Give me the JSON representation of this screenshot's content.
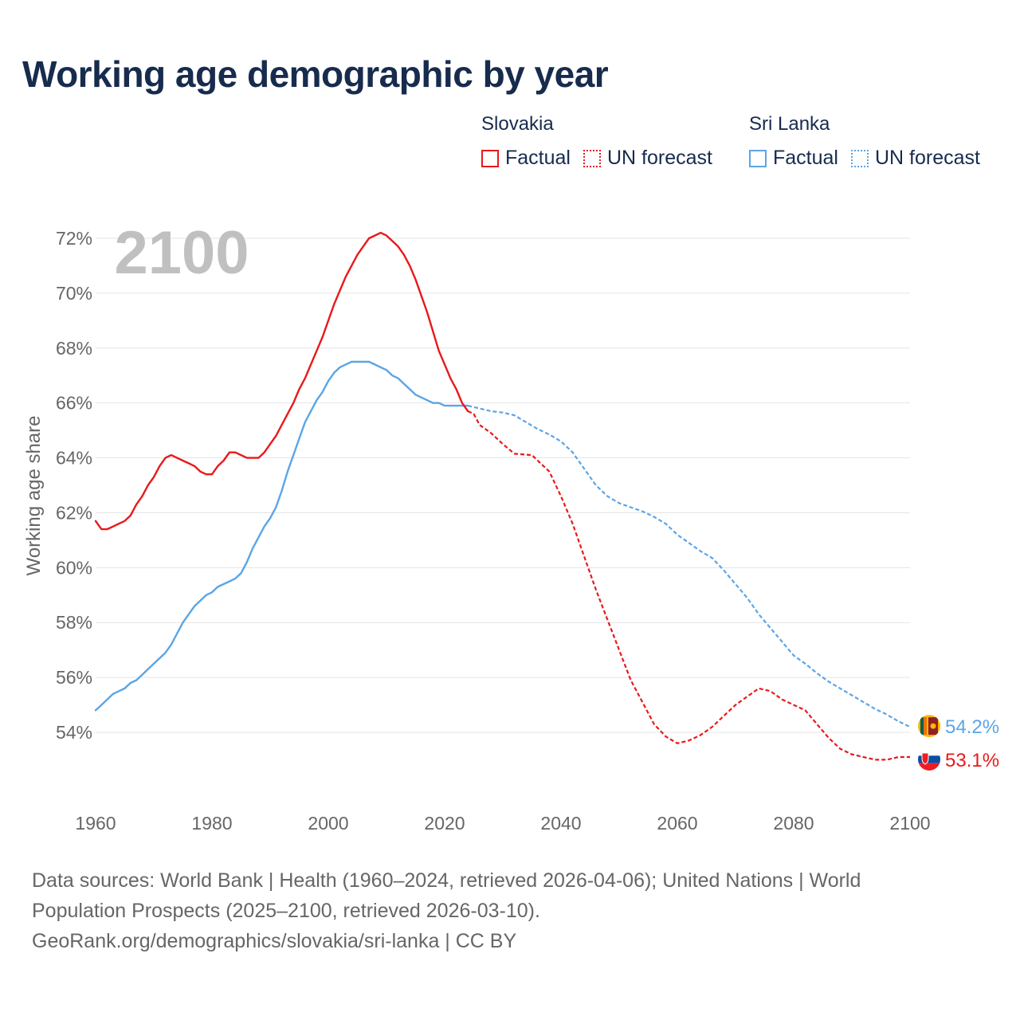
{
  "title": "Working age demographic by year",
  "legend": {
    "groups": [
      {
        "name": "Slovakia",
        "color": "#e8191b",
        "items": [
          "Factual",
          "UN forecast"
        ]
      },
      {
        "name": "Sri Lanka",
        "color": "#5aa5e6",
        "items": [
          "Factual",
          "UN forecast"
        ]
      }
    ]
  },
  "year_label": "2100",
  "footer": {
    "line1": "Data sources: World Bank | Health (1960–2024, retrieved 2026-04-06); United Nations | World",
    "line2": "Population Prospects (2025–2100, retrieved 2026-03-10).",
    "line3": "GeoRank.org/demographics/slovakia/sri-lanka | CC BY"
  },
  "chart_data": {
    "type": "line",
    "title": "Working age demographic by year",
    "xlabel": "",
    "ylabel": "Working age share",
    "xlim": [
      1960,
      2100
    ],
    "ylim": [
      52.5,
      72.5
    ],
    "x_ticks": [
      "1960",
      "1980",
      "2000",
      "2020",
      "2040",
      "2060",
      "2080",
      "2100"
    ],
    "y_ticks": [
      "54%",
      "56%",
      "58%",
      "60%",
      "62%",
      "64%",
      "66%",
      "68%",
      "70%",
      "72%"
    ],
    "grid": true,
    "series": [
      {
        "name": "Slovakia",
        "color": "#e8191b",
        "end_label": "53.1%",
        "flag": "slovakia-flag",
        "factual": [
          [
            1960,
            61.7
          ],
          [
            1961,
            61.4
          ],
          [
            1962,
            61.4
          ],
          [
            1963,
            61.5
          ],
          [
            1964,
            61.6
          ],
          [
            1965,
            61.7
          ],
          [
            1966,
            61.9
          ],
          [
            1967,
            62.3
          ],
          [
            1968,
            62.6
          ],
          [
            1969,
            63.0
          ],
          [
            1970,
            63.3
          ],
          [
            1971,
            63.7
          ],
          [
            1972,
            64.0
          ],
          [
            1973,
            64.1
          ],
          [
            1974,
            64.0
          ],
          [
            1975,
            63.9
          ],
          [
            1976,
            63.8
          ],
          [
            1977,
            63.7
          ],
          [
            1978,
            63.5
          ],
          [
            1979,
            63.4
          ],
          [
            1980,
            63.4
          ],
          [
            1981,
            63.7
          ],
          [
            1982,
            63.9
          ],
          [
            1983,
            64.2
          ],
          [
            1984,
            64.2
          ],
          [
            1985,
            64.1
          ],
          [
            1986,
            64.0
          ],
          [
            1987,
            64.0
          ],
          [
            1988,
            64.0
          ],
          [
            1989,
            64.2
          ],
          [
            1990,
            64.5
          ],
          [
            1991,
            64.8
          ],
          [
            1992,
            65.2
          ],
          [
            1993,
            65.6
          ],
          [
            1994,
            66.0
          ],
          [
            1995,
            66.5
          ],
          [
            1996,
            66.9
          ],
          [
            1997,
            67.4
          ],
          [
            1998,
            67.9
          ],
          [
            1999,
            68.4
          ],
          [
            2000,
            69.0
          ],
          [
            2001,
            69.6
          ],
          [
            2002,
            70.1
          ],
          [
            2003,
            70.6
          ],
          [
            2004,
            71.0
          ],
          [
            2005,
            71.4
          ],
          [
            2006,
            71.7
          ],
          [
            2007,
            72.0
          ],
          [
            2008,
            72.1
          ],
          [
            2009,
            72.2
          ],
          [
            2010,
            72.1
          ],
          [
            2011,
            71.9
          ],
          [
            2012,
            71.7
          ],
          [
            2013,
            71.4
          ],
          [
            2014,
            71.0
          ],
          [
            2015,
            70.5
          ],
          [
            2016,
            69.9
          ],
          [
            2017,
            69.3
          ],
          [
            2018,
            68.6
          ],
          [
            2019,
            67.9
          ],
          [
            2020,
            67.4
          ],
          [
            2021,
            66.9
          ],
          [
            2022,
            66.5
          ],
          [
            2023,
            66.0
          ],
          [
            2024,
            65.7
          ]
        ],
        "forecast": [
          [
            2024,
            65.7
          ],
          [
            2025,
            65.6
          ],
          [
            2026,
            65.2
          ],
          [
            2028,
            64.9
          ],
          [
            2030,
            64.5
          ],
          [
            2032,
            64.15
          ],
          [
            2035,
            64.1
          ],
          [
            2036,
            63.9
          ],
          [
            2038,
            63.5
          ],
          [
            2040,
            62.6
          ],
          [
            2042,
            61.6
          ],
          [
            2044,
            60.4
          ],
          [
            2046,
            59.2
          ],
          [
            2048,
            58.1
          ],
          [
            2050,
            57.0
          ],
          [
            2052,
            55.9
          ],
          [
            2054,
            55.1
          ],
          [
            2056,
            54.3
          ],
          [
            2058,
            53.85
          ],
          [
            2060,
            53.6
          ],
          [
            2062,
            53.7
          ],
          [
            2064,
            53.9
          ],
          [
            2066,
            54.2
          ],
          [
            2068,
            54.6
          ],
          [
            2070,
            55.0
          ],
          [
            2072,
            55.3
          ],
          [
            2074,
            55.6
          ],
          [
            2076,
            55.5
          ],
          [
            2078,
            55.2
          ],
          [
            2080,
            55.0
          ],
          [
            2082,
            54.8
          ],
          [
            2084,
            54.3
          ],
          [
            2086,
            53.8
          ],
          [
            2088,
            53.4
          ],
          [
            2090,
            53.2
          ],
          [
            2092,
            53.1
          ],
          [
            2094,
            53.0
          ],
          [
            2096,
            53.0
          ],
          [
            2098,
            53.1
          ],
          [
            2100,
            53.1
          ]
        ]
      },
      {
        "name": "Sri Lanka",
        "color": "#5aa5e6",
        "end_label": "54.2%",
        "flag": "sri-lanka-flag",
        "factual": [
          [
            1960,
            54.8
          ],
          [
            1961,
            55.0
          ],
          [
            1962,
            55.2
          ],
          [
            1963,
            55.4
          ],
          [
            1964,
            55.5
          ],
          [
            1965,
            55.6
          ],
          [
            1966,
            55.8
          ],
          [
            1967,
            55.9
          ],
          [
            1968,
            56.1
          ],
          [
            1969,
            56.3
          ],
          [
            1970,
            56.5
          ],
          [
            1971,
            56.7
          ],
          [
            1972,
            56.9
          ],
          [
            1973,
            57.2
          ],
          [
            1974,
            57.6
          ],
          [
            1975,
            58.0
          ],
          [
            1976,
            58.3
          ],
          [
            1977,
            58.6
          ],
          [
            1978,
            58.8
          ],
          [
            1979,
            59.0
          ],
          [
            1980,
            59.1
          ],
          [
            1981,
            59.3
          ],
          [
            1982,
            59.4
          ],
          [
            1983,
            59.5
          ],
          [
            1984,
            59.6
          ],
          [
            1985,
            59.8
          ],
          [
            1986,
            60.2
          ],
          [
            1987,
            60.7
          ],
          [
            1988,
            61.1
          ],
          [
            1989,
            61.5
          ],
          [
            1990,
            61.8
          ],
          [
            1991,
            62.2
          ],
          [
            1992,
            62.8
          ],
          [
            1993,
            63.5
          ],
          [
            1994,
            64.1
          ],
          [
            1995,
            64.7
          ],
          [
            1996,
            65.3
          ],
          [
            1997,
            65.7
          ],
          [
            1998,
            66.1
          ],
          [
            1999,
            66.4
          ],
          [
            2000,
            66.8
          ],
          [
            2001,
            67.1
          ],
          [
            2002,
            67.3
          ],
          [
            2003,
            67.4
          ],
          [
            2004,
            67.5
          ],
          [
            2005,
            67.5
          ],
          [
            2006,
            67.5
          ],
          [
            2007,
            67.5
          ],
          [
            2008,
            67.4
          ],
          [
            2009,
            67.3
          ],
          [
            2010,
            67.2
          ],
          [
            2011,
            67.0
          ],
          [
            2012,
            66.9
          ],
          [
            2013,
            66.7
          ],
          [
            2014,
            66.5
          ],
          [
            2015,
            66.3
          ],
          [
            2016,
            66.2
          ],
          [
            2017,
            66.1
          ],
          [
            2018,
            66.0
          ],
          [
            2019,
            66.0
          ],
          [
            2020,
            65.9
          ],
          [
            2021,
            65.9
          ],
          [
            2022,
            65.9
          ],
          [
            2023,
            65.9
          ],
          [
            2024,
            65.9
          ]
        ],
        "forecast": [
          [
            2024,
            65.9
          ],
          [
            2026,
            65.8
          ],
          [
            2028,
            65.7
          ],
          [
            2030,
            65.65
          ],
          [
            2032,
            65.55
          ],
          [
            2034,
            65.3
          ],
          [
            2036,
            65.05
          ],
          [
            2038,
            64.85
          ],
          [
            2040,
            64.6
          ],
          [
            2042,
            64.2
          ],
          [
            2044,
            63.6
          ],
          [
            2046,
            63.0
          ],
          [
            2048,
            62.6
          ],
          [
            2050,
            62.35
          ],
          [
            2052,
            62.2
          ],
          [
            2054,
            62.05
          ],
          [
            2056,
            61.85
          ],
          [
            2058,
            61.6
          ],
          [
            2060,
            61.2
          ],
          [
            2062,
            60.9
          ],
          [
            2064,
            60.6
          ],
          [
            2066,
            60.35
          ],
          [
            2068,
            59.9
          ],
          [
            2070,
            59.4
          ],
          [
            2072,
            58.9
          ],
          [
            2074,
            58.3
          ],
          [
            2076,
            57.8
          ],
          [
            2078,
            57.3
          ],
          [
            2080,
            56.8
          ],
          [
            2082,
            56.5
          ],
          [
            2084,
            56.15
          ],
          [
            2086,
            55.85
          ],
          [
            2088,
            55.6
          ],
          [
            2090,
            55.35
          ],
          [
            2092,
            55.1
          ],
          [
            2094,
            54.85
          ],
          [
            2096,
            54.65
          ],
          [
            2098,
            54.4
          ],
          [
            2100,
            54.2
          ]
        ]
      }
    ]
  }
}
